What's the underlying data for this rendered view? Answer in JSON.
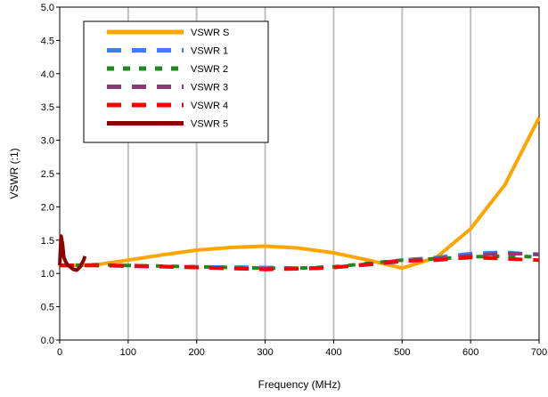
{
  "chart_data": {
    "type": "line",
    "title": "",
    "xlabel": "Frequency (MHz)",
    "ylabel": "VSWR (:1)",
    "xlim": [
      0,
      700
    ],
    "ylim": [
      0,
      5
    ],
    "x_ticks": [
      "0",
      "100",
      "200",
      "300",
      "400",
      "500",
      "600",
      "700"
    ],
    "y_ticks": [
      "0.0",
      "0.5",
      "1.0",
      "1.5",
      "2.0",
      "2.5",
      "3.0",
      "3.5",
      "4.0",
      "4.5",
      "5.0"
    ],
    "grid": "vertical",
    "legend_position": "top-left",
    "series": [
      {
        "name": "VSWR S",
        "color": "#FFA500",
        "style": "solid",
        "points": [
          [
            0,
            1.12
          ],
          [
            30,
            1.12
          ],
          [
            60,
            1.14
          ],
          [
            100,
            1.2
          ],
          [
            150,
            1.28
          ],
          [
            200,
            1.35
          ],
          [
            250,
            1.39
          ],
          [
            300,
            1.41
          ],
          [
            350,
            1.38
          ],
          [
            400,
            1.31
          ],
          [
            450,
            1.2
          ],
          [
            500,
            1.08
          ],
          [
            550,
            1.24
          ],
          [
            600,
            1.67
          ],
          [
            650,
            2.33
          ],
          [
            700,
            3.34
          ]
        ]
      },
      {
        "name": "VSWR 1",
        "color": "#3F7FFF",
        "style": "dash",
        "points": [
          [
            0,
            1.12
          ],
          [
            50,
            1.13
          ],
          [
            100,
            1.11
          ],
          [
            200,
            1.1
          ],
          [
            300,
            1.09
          ],
          [
            350,
            1.08
          ],
          [
            400,
            1.09
          ],
          [
            450,
            1.14
          ],
          [
            500,
            1.2
          ],
          [
            550,
            1.24
          ],
          [
            600,
            1.3
          ],
          [
            650,
            1.32
          ],
          [
            700,
            1.28
          ]
        ]
      },
      {
        "name": "VSWR 2",
        "color": "#1E8A1E",
        "style": "short-dash",
        "points": [
          [
            0,
            1.12
          ],
          [
            50,
            1.13
          ],
          [
            100,
            1.12
          ],
          [
            200,
            1.1
          ],
          [
            300,
            1.08
          ],
          [
            350,
            1.08
          ],
          [
            400,
            1.1
          ],
          [
            450,
            1.15
          ],
          [
            500,
            1.2
          ],
          [
            550,
            1.22
          ],
          [
            600,
            1.25
          ],
          [
            650,
            1.26
          ],
          [
            700,
            1.25
          ]
        ]
      },
      {
        "name": "VSWR 3",
        "color": "#8B3A78",
        "style": "dash",
        "points": [
          [
            0,
            1.12
          ],
          [
            50,
            1.12
          ],
          [
            100,
            1.11
          ],
          [
            200,
            1.09
          ],
          [
            300,
            1.07
          ],
          [
            350,
            1.07
          ],
          [
            400,
            1.09
          ],
          [
            450,
            1.13
          ],
          [
            500,
            1.18
          ],
          [
            550,
            1.22
          ],
          [
            600,
            1.27
          ],
          [
            650,
            1.3
          ],
          [
            700,
            1.29
          ]
        ]
      },
      {
        "name": "VSWR 4",
        "color": "#FF0000",
        "style": "dash",
        "points": [
          [
            0,
            1.12
          ],
          [
            50,
            1.12
          ],
          [
            100,
            1.12
          ],
          [
            200,
            1.09
          ],
          [
            300,
            1.06
          ],
          [
            350,
            1.07
          ],
          [
            400,
            1.09
          ],
          [
            450,
            1.14
          ],
          [
            500,
            1.19
          ],
          [
            550,
            1.2
          ],
          [
            600,
            1.24
          ],
          [
            650,
            1.22
          ],
          [
            700,
            1.2
          ]
        ]
      },
      {
        "name": "VSWR 5",
        "color": "#8B0000",
        "style": "solid",
        "points": [
          [
            0,
            1.12
          ],
          [
            2,
            1.56
          ],
          [
            4,
            1.45
          ],
          [
            6,
            1.24
          ],
          [
            10,
            1.15
          ],
          [
            15,
            1.1
          ],
          [
            20,
            1.06
          ],
          [
            25,
            1.05
          ],
          [
            30,
            1.1
          ],
          [
            35,
            1.2
          ],
          [
            37,
            1.26
          ]
        ]
      }
    ]
  }
}
